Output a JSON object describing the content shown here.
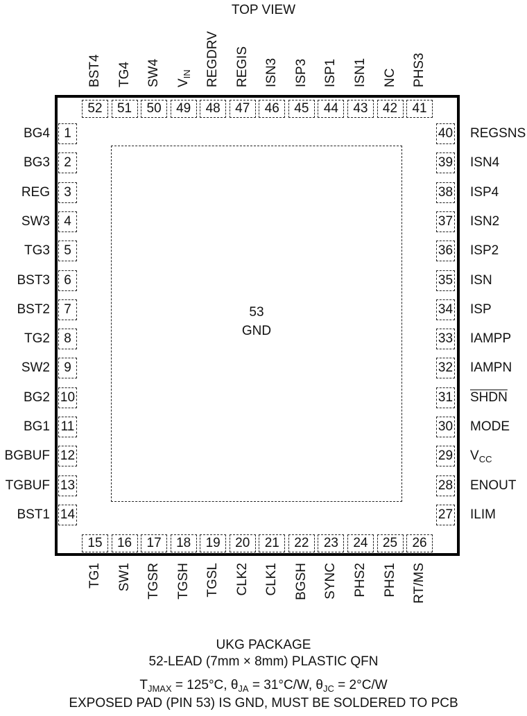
{
  "title": "TOP VIEW",
  "exposed_pad": {
    "number": "53",
    "label": "GND"
  },
  "pins": {
    "left": [
      {
        "num": "1",
        "label": "BG4"
      },
      {
        "num": "2",
        "label": "BG3"
      },
      {
        "num": "3",
        "label": "REG"
      },
      {
        "num": "4",
        "label": "SW3"
      },
      {
        "num": "5",
        "label": "TG3"
      },
      {
        "num": "6",
        "label": "BST3"
      },
      {
        "num": "7",
        "label": "BST2"
      },
      {
        "num": "8",
        "label": "TG2"
      },
      {
        "num": "9",
        "label": "SW2"
      },
      {
        "num": "10",
        "label": "BG2"
      },
      {
        "num": "11",
        "label": "BG1"
      },
      {
        "num": "12",
        "label": "BGBUF"
      },
      {
        "num": "13",
        "label": "TGBUF"
      },
      {
        "num": "14",
        "label": "BST1"
      }
    ],
    "bottom": [
      {
        "num": "15",
        "label": "TG1"
      },
      {
        "num": "16",
        "label": "SW1"
      },
      {
        "num": "17",
        "label": "TGSR"
      },
      {
        "num": "18",
        "label": "TGSH"
      },
      {
        "num": "19",
        "label": "TGSL"
      },
      {
        "num": "20",
        "label": "CLK2"
      },
      {
        "num": "21",
        "label": "CLK1"
      },
      {
        "num": "22",
        "label": "BGSH"
      },
      {
        "num": "23",
        "label": "SYNC"
      },
      {
        "num": "24",
        "label": "PHS2"
      },
      {
        "num": "25",
        "label": "PHS1"
      },
      {
        "num": "26",
        "label": "RT/MS"
      }
    ],
    "right": [
      {
        "num": "40",
        "label": "REGSNS"
      },
      {
        "num": "39",
        "label": "ISN4"
      },
      {
        "num": "38",
        "label": "ISP4"
      },
      {
        "num": "37",
        "label": "ISN2"
      },
      {
        "num": "36",
        "label": "ISP2"
      },
      {
        "num": "35",
        "label": "ISN"
      },
      {
        "num": "34",
        "label": "ISP"
      },
      {
        "num": "33",
        "label": "IAMPP"
      },
      {
        "num": "32",
        "label": "IAMPN"
      },
      {
        "num": "31",
        "label": "SHDN",
        "overline": true
      },
      {
        "num": "30",
        "label": "MODE"
      },
      {
        "num": "29",
        "label": "V",
        "sub": "CC"
      },
      {
        "num": "28",
        "label": "ENOUT"
      },
      {
        "num": "27",
        "label": "ILIM"
      }
    ],
    "top": [
      {
        "num": "52",
        "label": "BST4"
      },
      {
        "num": "51",
        "label": "TG4"
      },
      {
        "num": "50",
        "label": "SW4"
      },
      {
        "num": "49",
        "label": "V",
        "sub": "IN"
      },
      {
        "num": "48",
        "label": "REGDRV"
      },
      {
        "num": "47",
        "label": "REGIS"
      },
      {
        "num": "46",
        "label": "ISN3"
      },
      {
        "num": "45",
        "label": "ISP3"
      },
      {
        "num": "44",
        "label": "ISP1"
      },
      {
        "num": "43",
        "label": "ISN1"
      },
      {
        "num": "42",
        "label": "NC"
      },
      {
        "num": "41",
        "label": "PHS3"
      }
    ]
  },
  "footer": {
    "package": "UKG PACKAGE",
    "description": "52-LEAD (7mm × 8mm) PLASTIC QFN",
    "thermal": {
      "tj_sym": "T",
      "tj_sub": "JMAX",
      "tj_val": " = 125°C, ",
      "ja_sym": "θ",
      "ja_sub": "JA",
      "ja_val": " = 31°C/W, ",
      "jc_sym": "θ",
      "jc_sub": "JC",
      "jc_val": " = 2°C/W"
    },
    "note": "EXPOSED PAD (PIN 53) IS GND, MUST BE SOLDERED TO PCB"
  }
}
